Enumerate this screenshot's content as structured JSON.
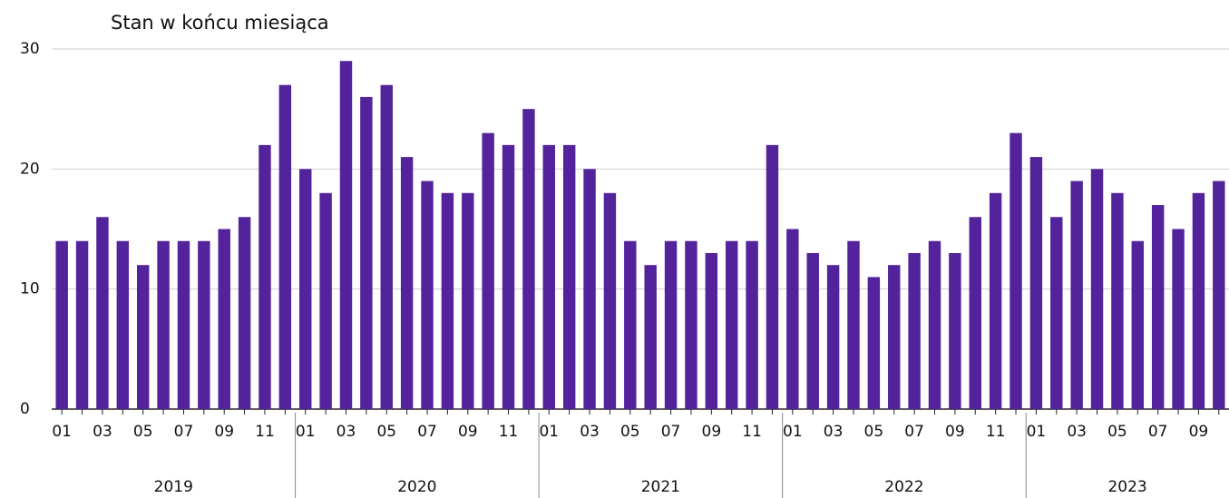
{
  "chart_data": {
    "type": "bar",
    "subtitle": "Stan w końcu miesiąca",
    "categories": [
      "01",
      null,
      "03",
      null,
      "05",
      null,
      "07",
      null,
      "09",
      null,
      "11",
      null,
      "01",
      null,
      "03",
      null,
      "05",
      null,
      "07",
      null,
      "09",
      null,
      "11",
      null,
      "01",
      null,
      "03",
      null,
      "05",
      null,
      "07",
      null,
      "09",
      null,
      "11",
      null,
      "01",
      null,
      "03",
      null,
      "05",
      null,
      "07",
      null,
      "09",
      null,
      "11",
      null,
      "01",
      null,
      "03",
      null,
      "05",
      null,
      "07",
      null,
      "09",
      null
    ],
    "groups": [
      "2019",
      "2020",
      "2021",
      "2022",
      "2023"
    ],
    "values": [
      14,
      14,
      16,
      14,
      12,
      14,
      14,
      14,
      15,
      16,
      22,
      27,
      20,
      18,
      29,
      26,
      27,
      21,
      19,
      18,
      18,
      23,
      22,
      25,
      22,
      22,
      20,
      18,
      14,
      12,
      14,
      14,
      13,
      14,
      14,
      22,
      15,
      13,
      12,
      14,
      11,
      12,
      13,
      14,
      13,
      16,
      18,
      23,
      21,
      16,
      19,
      20,
      18,
      14,
      17,
      15,
      18,
      19
    ],
    "color": "#52239a",
    "ylim": [
      0,
      30
    ],
    "yticks": [
      0,
      10,
      20,
      30
    ],
    "grid": true
  }
}
